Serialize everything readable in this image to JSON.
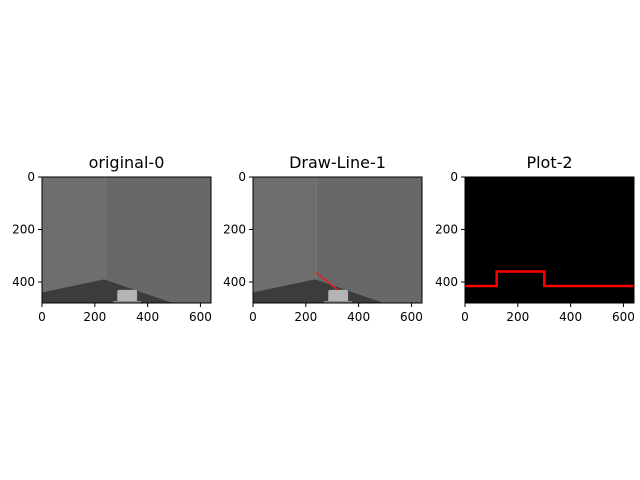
{
  "figure": {
    "background": "#ffffff",
    "axis_color": "#000000",
    "line_color": "#ff0000"
  },
  "panels": [
    {
      "kind": "image",
      "title": "original-0",
      "xlim": [
        0,
        640
      ],
      "ylim": [
        480,
        0
      ],
      "xticks": [
        0,
        200,
        400,
        600
      ],
      "yticks": [
        0,
        200,
        400
      ],
      "xticklabels": [
        "0",
        "200",
        "400",
        "600"
      ],
      "yticklabels": [
        "0",
        "200",
        "400"
      ],
      "scene": {
        "wall_left_color": "#6e6e6e",
        "wall_right_color": "#686868",
        "wall_corner_x": 240,
        "floor_color": "#3c3c3c",
        "floor_peak": [
          235,
          390
        ],
        "floor_left_y": 440,
        "floor_right_x": 495,
        "robot_color": "#b4b4b4",
        "robot_x": [
          285,
          360
        ],
        "robot_y": [
          430,
          480
        ]
      }
    },
    {
      "kind": "image",
      "title": "Draw-Line-1",
      "xlim": [
        0,
        640
      ],
      "ylim": [
        480,
        0
      ],
      "xticks": [
        0,
        200,
        400,
        600
      ],
      "yticks": [
        0,
        200,
        400
      ],
      "xticklabels": [
        "0",
        "200",
        "400",
        "600"
      ],
      "yticklabels": [
        "0",
        "200",
        "400"
      ],
      "scene": {
        "wall_left_color": "#6e6e6e",
        "wall_right_color": "#686868",
        "wall_corner_x": 240,
        "floor_color": "#3c3c3c",
        "floor_peak": [
          235,
          390
        ],
        "floor_left_y": 440,
        "floor_right_x": 495,
        "robot_color": "#b4b4b4",
        "robot_x": [
          285,
          360
        ],
        "robot_y": [
          430,
          480
        ]
      },
      "drawn_line": {
        "from": [
          240,
          365
        ],
        "to": [
          320,
          430
        ],
        "color": "#e62020"
      }
    },
    {
      "kind": "plot",
      "title": "Plot-2",
      "xlim": [
        0,
        640
      ],
      "ylim": [
        480,
        0
      ],
      "xticks": [
        0,
        200,
        400,
        600
      ],
      "yticks": [
        0,
        200,
        400
      ],
      "xticklabels": [
        "0",
        "200",
        "400",
        "600"
      ],
      "yticklabels": [
        "0",
        "200",
        "400"
      ],
      "background": "#000000"
    }
  ],
  "chart_data": {
    "type": "line",
    "title": "Plot-2",
    "xlabel": "",
    "ylabel": "",
    "xlim": [
      0,
      640
    ],
    "ylim": [
      480,
      0
    ],
    "series": [
      {
        "color": "#ff0000",
        "x": [
          0,
          120,
          120,
          300,
          300,
          640
        ],
        "y": [
          415,
          415,
          360,
          360,
          415,
          415
        ]
      }
    ]
  }
}
